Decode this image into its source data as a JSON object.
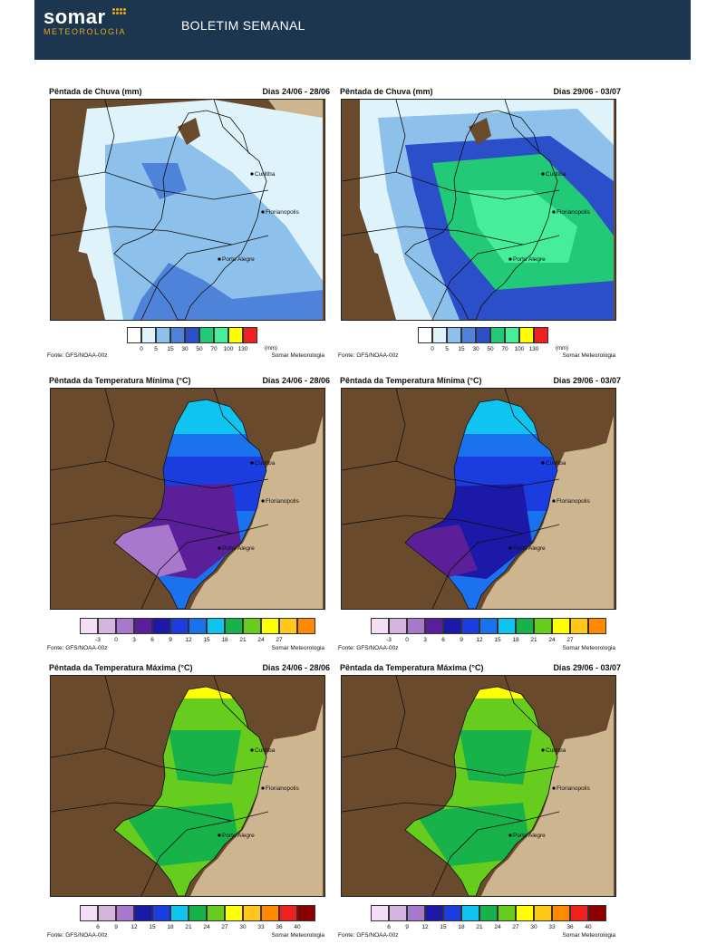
{
  "header": {
    "logo_word": "somar",
    "logo_sub": "METEOROLOGIA",
    "title": "BOLETIM SEMANAL"
  },
  "colors": {
    "header_bg": "#1c3650",
    "logo_accent": "#e8a817",
    "land_brown": "#6a4a2c",
    "ocean_tan": "#cdb58f"
  },
  "cities": [
    "Curitiba",
    "Florianopolis",
    "Porto Alegre"
  ],
  "source_label": "Fonte: GFS/NOAA-00z",
  "credit_label": "Somar Meteorologia",
  "panels": [
    {
      "title": "Pêntada de Chuva (mm)",
      "date": "Dias 24/06 - 28/06",
      "variable": "chuva",
      "scale": "rain"
    },
    {
      "title": "Pêntada de Chuva (mm)",
      "date": "Dias 29/06 - 03/07",
      "variable": "chuva",
      "scale": "rain"
    },
    {
      "title": "Pêntada da Temperatura Mínima (°C)",
      "date": "Dias 24/06 - 28/06",
      "variable": "tmin",
      "scale": "tmin"
    },
    {
      "title": "Pêntada da Temperatura Mínima (°C)",
      "date": "Dias 29/06 - 03/07",
      "variable": "tmin",
      "scale": "tmin"
    },
    {
      "title": "Pêntada da Temperatura Máxima (°C)",
      "date": "Dias 24/06 - 28/06",
      "variable": "tmax",
      "scale": "tmax"
    },
    {
      "title": "Pêntada da Temperatura Máxima (°C)",
      "date": "Dias 29/06 - 03/07",
      "variable": "tmax",
      "scale": "tmax"
    }
  ],
  "scales": {
    "rain": {
      "labels": [
        "0",
        "5",
        "15",
        "30",
        "50",
        "70",
        "100",
        "130"
      ],
      "unit": "(mm)",
      "colors": [
        "#ffffff",
        "#dff3fb",
        "#8dc0ea",
        "#4f83d9",
        "#2a4fc8",
        "#22c977",
        "#46ee9a",
        "#ffff00",
        "#ee2020"
      ]
    },
    "tmin": {
      "labels": [
        "-3",
        "0",
        "3",
        "6",
        "9",
        "12",
        "15",
        "18",
        "21",
        "24",
        "27"
      ],
      "colors": [
        "#f2dff3",
        "#d6b4e0",
        "#a878cc",
        "#5b1f99",
        "#1c18a8",
        "#1b3de0",
        "#1a72ef",
        "#10c4f0",
        "#18b24a",
        "#66cc1e",
        "#ffff00",
        "#ffc81a",
        "#ff8a00"
      ]
    },
    "tmax": {
      "labels": [
        "6",
        "9",
        "12",
        "15",
        "18",
        "21",
        "24",
        "27",
        "30",
        "33",
        "36",
        "40"
      ],
      "colors": [
        "#f2dff3",
        "#d6b4e0",
        "#a878cc",
        "#1c18a8",
        "#1b3de0",
        "#10c4f0",
        "#18b24a",
        "#66cc1e",
        "#ffff00",
        "#ffc81a",
        "#ff8a00",
        "#ee2020",
        "#8b0000"
      ]
    }
  }
}
